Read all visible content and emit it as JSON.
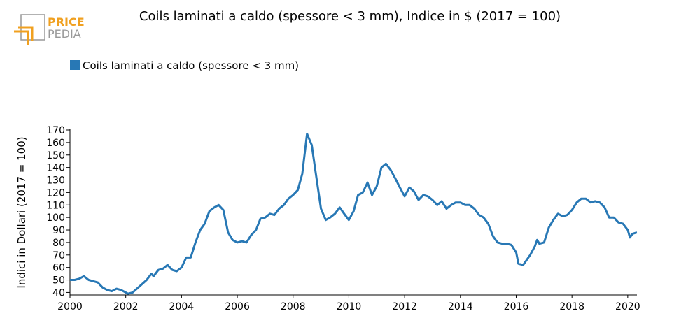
{
  "logo": {
    "line1": "PRICE",
    "line2": "PEDIA",
    "color_orange": "#F0A020",
    "color_gray": "#999999"
  },
  "chart_data": {
    "type": "line",
    "title": "Coils laminati a caldo (spessore < 3 mm), Indice in $ (2017 = 100)",
    "xlabel": "",
    "ylabel": "Indici in Dollari (2017 = 100)",
    "xlim": [
      2000,
      2020.33
    ],
    "ylim": [
      38,
      170
    ],
    "x_ticks": [
      2000,
      2002,
      2004,
      2006,
      2008,
      2010,
      2012,
      2014,
      2016,
      2018,
      2020
    ],
    "y_ticks": [
      40,
      50,
      60,
      70,
      80,
      90,
      100,
      110,
      120,
      130,
      140,
      150,
      160,
      170
    ],
    "grid": false,
    "legend_position": "top-left",
    "series": [
      {
        "name": "Coils laminati a caldo (spessore < 3 mm)",
        "color": "#2878B5",
        "points": [
          [
            2000.0,
            50
          ],
          [
            2000.17,
            50
          ],
          [
            2000.33,
            51
          ],
          [
            2000.5,
            53
          ],
          [
            2000.67,
            50
          ],
          [
            2000.83,
            49
          ],
          [
            2001.0,
            48
          ],
          [
            2001.17,
            44
          ],
          [
            2001.33,
            42
          ],
          [
            2001.5,
            41
          ],
          [
            2001.67,
            43
          ],
          [
            2001.83,
            42
          ],
          [
            2002.0,
            40
          ],
          [
            2002.08,
            39
          ],
          [
            2002.25,
            40
          ],
          [
            2002.5,
            45
          ],
          [
            2002.75,
            50
          ],
          [
            2002.92,
            55
          ],
          [
            2003.0,
            53
          ],
          [
            2003.17,
            58
          ],
          [
            2003.33,
            59
          ],
          [
            2003.5,
            62
          ],
          [
            2003.67,
            58
          ],
          [
            2003.83,
            57
          ],
          [
            2004.0,
            60
          ],
          [
            2004.17,
            68
          ],
          [
            2004.33,
            68
          ],
          [
            2004.5,
            80
          ],
          [
            2004.67,
            90
          ],
          [
            2004.83,
            95
          ],
          [
            2005.0,
            105
          ],
          [
            2005.17,
            108
          ],
          [
            2005.33,
            110
          ],
          [
            2005.5,
            106
          ],
          [
            2005.67,
            88
          ],
          [
            2005.83,
            82
          ],
          [
            2006.0,
            80
          ],
          [
            2006.17,
            81
          ],
          [
            2006.33,
            80
          ],
          [
            2006.5,
            86
          ],
          [
            2006.67,
            90
          ],
          [
            2006.83,
            99
          ],
          [
            2007.0,
            100
          ],
          [
            2007.17,
            103
          ],
          [
            2007.33,
            102
          ],
          [
            2007.5,
            107
          ],
          [
            2007.67,
            110
          ],
          [
            2007.83,
            115
          ],
          [
            2008.0,
            118
          ],
          [
            2008.17,
            122
          ],
          [
            2008.33,
            135
          ],
          [
            2008.5,
            167
          ],
          [
            2008.67,
            158
          ],
          [
            2008.83,
            133
          ],
          [
            2009.0,
            107
          ],
          [
            2009.17,
            98
          ],
          [
            2009.33,
            100
          ],
          [
            2009.5,
            103
          ],
          [
            2009.67,
            108
          ],
          [
            2009.83,
            103
          ],
          [
            2010.0,
            98
          ],
          [
            2010.17,
            105
          ],
          [
            2010.33,
            118
          ],
          [
            2010.5,
            120
          ],
          [
            2010.67,
            128
          ],
          [
            2010.83,
            118
          ],
          [
            2011.0,
            125
          ],
          [
            2011.17,
            140
          ],
          [
            2011.33,
            143
          ],
          [
            2011.5,
            138
          ],
          [
            2011.67,
            131
          ],
          [
            2011.83,
            124
          ],
          [
            2012.0,
            117
          ],
          [
            2012.17,
            124
          ],
          [
            2012.33,
            121
          ],
          [
            2012.5,
            114
          ],
          [
            2012.67,
            118
          ],
          [
            2012.83,
            117
          ],
          [
            2013.0,
            114
          ],
          [
            2013.17,
            110
          ],
          [
            2013.33,
            113
          ],
          [
            2013.5,
            107
          ],
          [
            2013.67,
            110
          ],
          [
            2013.83,
            112
          ],
          [
            2014.0,
            112
          ],
          [
            2014.17,
            110
          ],
          [
            2014.33,
            110
          ],
          [
            2014.5,
            107
          ],
          [
            2014.67,
            102
          ],
          [
            2014.83,
            100
          ],
          [
            2015.0,
            95
          ],
          [
            2015.17,
            85
          ],
          [
            2015.33,
            80
          ],
          [
            2015.5,
            79
          ],
          [
            2015.67,
            79
          ],
          [
            2015.83,
            78
          ],
          [
            2016.0,
            72
          ],
          [
            2016.08,
            63
          ],
          [
            2016.25,
            62
          ],
          [
            2016.5,
            70
          ],
          [
            2016.67,
            77
          ],
          [
            2016.75,
            82
          ],
          [
            2016.83,
            79
          ],
          [
            2017.0,
            80
          ],
          [
            2017.17,
            92
          ],
          [
            2017.33,
            98
          ],
          [
            2017.5,
            103
          ],
          [
            2017.67,
            101
          ],
          [
            2017.83,
            102
          ],
          [
            2018.0,
            106
          ],
          [
            2018.17,
            112
          ],
          [
            2018.33,
            115
          ],
          [
            2018.5,
            115
          ],
          [
            2018.67,
            112
          ],
          [
            2018.83,
            113
          ],
          [
            2019.0,
            112
          ],
          [
            2019.17,
            108
          ],
          [
            2019.33,
            100
          ],
          [
            2019.5,
            100
          ],
          [
            2019.67,
            96
          ],
          [
            2019.83,
            95
          ],
          [
            2020.0,
            90
          ],
          [
            2020.08,
            84
          ],
          [
            2020.17,
            87
          ],
          [
            2020.33,
            88
          ]
        ]
      }
    ]
  }
}
